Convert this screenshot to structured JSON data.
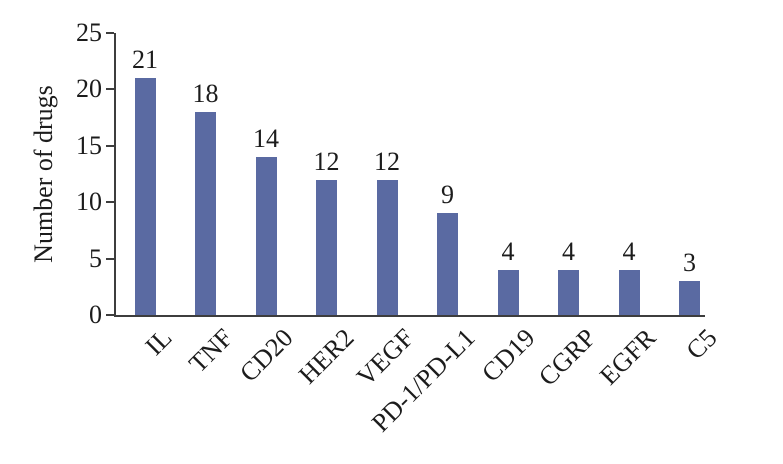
{
  "chart_data": {
    "type": "bar",
    "categories": [
      "IL",
      "TNF",
      "CD20",
      "HER2",
      "VEGF",
      "PD-1/PD-L1",
      "CD19",
      "CGRP",
      "EGFR",
      "C5"
    ],
    "values": [
      21,
      18,
      14,
      12,
      12,
      9,
      4,
      4,
      4,
      3
    ],
    "value_labels": [
      "21",
      "18",
      "14",
      "12",
      "12",
      "9",
      "4",
      "4",
      "4",
      "3"
    ],
    "title": "",
    "xlabel": "",
    "ylabel": "Number of drugs",
    "ylim": [
      0,
      25
    ],
    "yticks": [
      0,
      5,
      10,
      15,
      20,
      25
    ],
    "ytick_labels": [
      "0",
      "5",
      "10",
      "15",
      "20",
      "25"
    ],
    "grid": false,
    "legend": false,
    "bar_color": "#5a6aa2",
    "axis_color": "#3d3d3d",
    "text_color": "#1c1c1c",
    "background_color": "#ffffff"
  }
}
